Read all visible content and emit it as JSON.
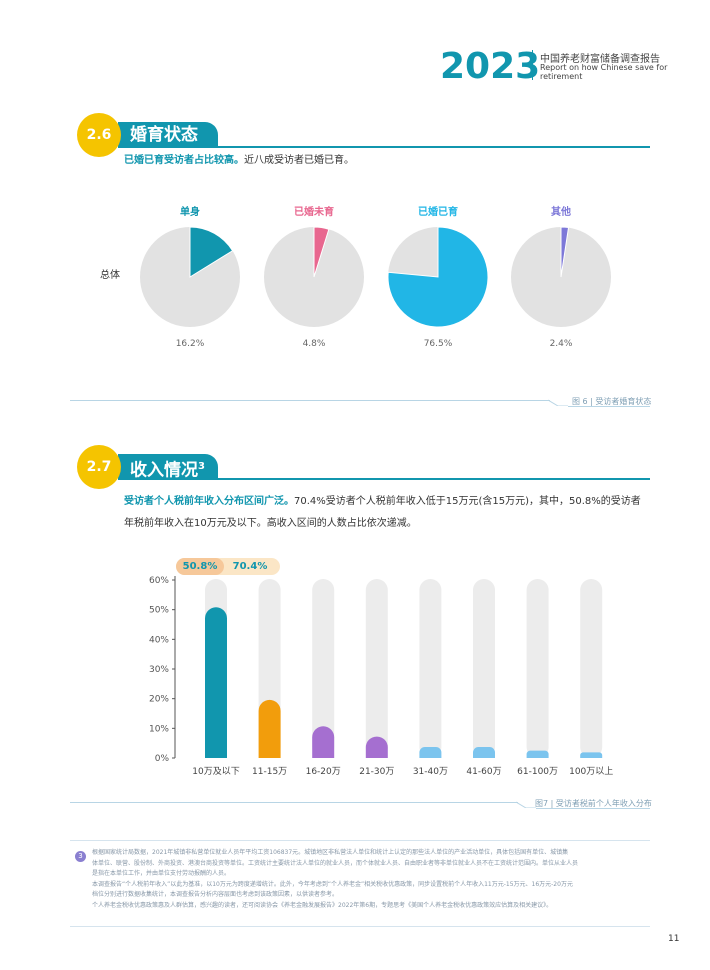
{
  "header": {
    "year": "2023",
    "title_cn": "中国养老财富储备调查报告",
    "title_en_line1": "Report on how Chinese save for",
    "title_en_line2": "retirement"
  },
  "section1": {
    "number": "2.6",
    "title": "婚育状态",
    "lead_bold": "已婚已育受访者占比较高。",
    "lead_rest": "近八成受访者已婚已育。",
    "row_label": "总体",
    "caption": "图 6 | 受访者婚育状态"
  },
  "section2": {
    "number": "2.7",
    "title": "收入情况",
    "superscript": "3",
    "lead_bold": "受访者个人税前年收入分布区间广泛。",
    "lead_line1_rest": "70.4%受访者个人税前年收入低于15万元(含15万元)，其中，50.8%的受访者",
    "lead_line2": "年税前年收入在10万元及以下。高收入区间的人数占比依次递减。",
    "caption": "图7 | 受访者税前个人年收入分布",
    "highlight1": "50.8%",
    "highlight2": "70.4%"
  },
  "chart_data": [
    {
      "type": "pie",
      "slices": [
        {
          "label": "单身",
          "value": 16.2,
          "display": "16.2%",
          "color": "#1196ae"
        },
        {
          "label": "已婚未育",
          "value": 4.8,
          "display": "4.8%",
          "color": "#e8678f"
        },
        {
          "label": "已婚已育",
          "value": 76.5,
          "display": "76.5%",
          "color": "#21b6e6"
        },
        {
          "label": "其他",
          "value": 2.4,
          "display": "2.4%",
          "color": "#7d78d8"
        }
      ],
      "row_label": "总体"
    },
    {
      "type": "bar",
      "categories": [
        "10万及以下",
        "11-15万",
        "16-20万",
        "21-30万",
        "31-40万",
        "41-60万",
        "61-100万",
        "100万以上"
      ],
      "values": [
        50.8,
        19.6,
        10.7,
        7.2,
        3.7,
        3.7,
        2.5,
        1.9
      ],
      "colors": [
        "#1196ae",
        "#f29d0c",
        "#a56fd0",
        "#a56fd0",
        "#7bc4ee",
        "#7bc4ee",
        "#7bc4ee",
        "#7bc4ee"
      ],
      "yticks": [
        "0%",
        "10%",
        "20%",
        "30%",
        "40%",
        "50%",
        "60%"
      ],
      "ylim": [
        0,
        60
      ]
    }
  ],
  "footnote": {
    "number": "3",
    "lines": [
      "根据国家统计局数据，2021年城镇非私营单位就业人员年平均工资106837元。城镇地区非私营法人单位和统计上认定的那些法人单位的产业活动单位，具体包括国有单位、城镇集",
      "体单位、联营、股份制、外商投资、港澳台商投资等单位。工资统计主要统计法人单位的就业人员，而个体就业人员、自由职业者等非单位就业人员不在工资统计范围内。单位从业人员",
      "是指在本单位工作，并由单位支付劳动报酬的人员。",
      "本调查报告“个人税前年收入”以此为基准，以10万元为跨度递增统计。此外，今年考虑到“个人养老金”相关税收优惠政策，同步设置税前个人年收入11万元-15万元、16万元-20万元",
      "档位分别进行数据收集统计，本调查报告分析内容层面也考虑到该政策因素，以供读者参考。",
      "个人养老金税收优惠政策惠及人群估算，感兴趣的读者，还可阅读协会《养老金融发展报告》2022年第6期，专题思考《美国个人养老金税收优惠政策效应估算及相关建议》。"
    ]
  },
  "page_number": "11"
}
